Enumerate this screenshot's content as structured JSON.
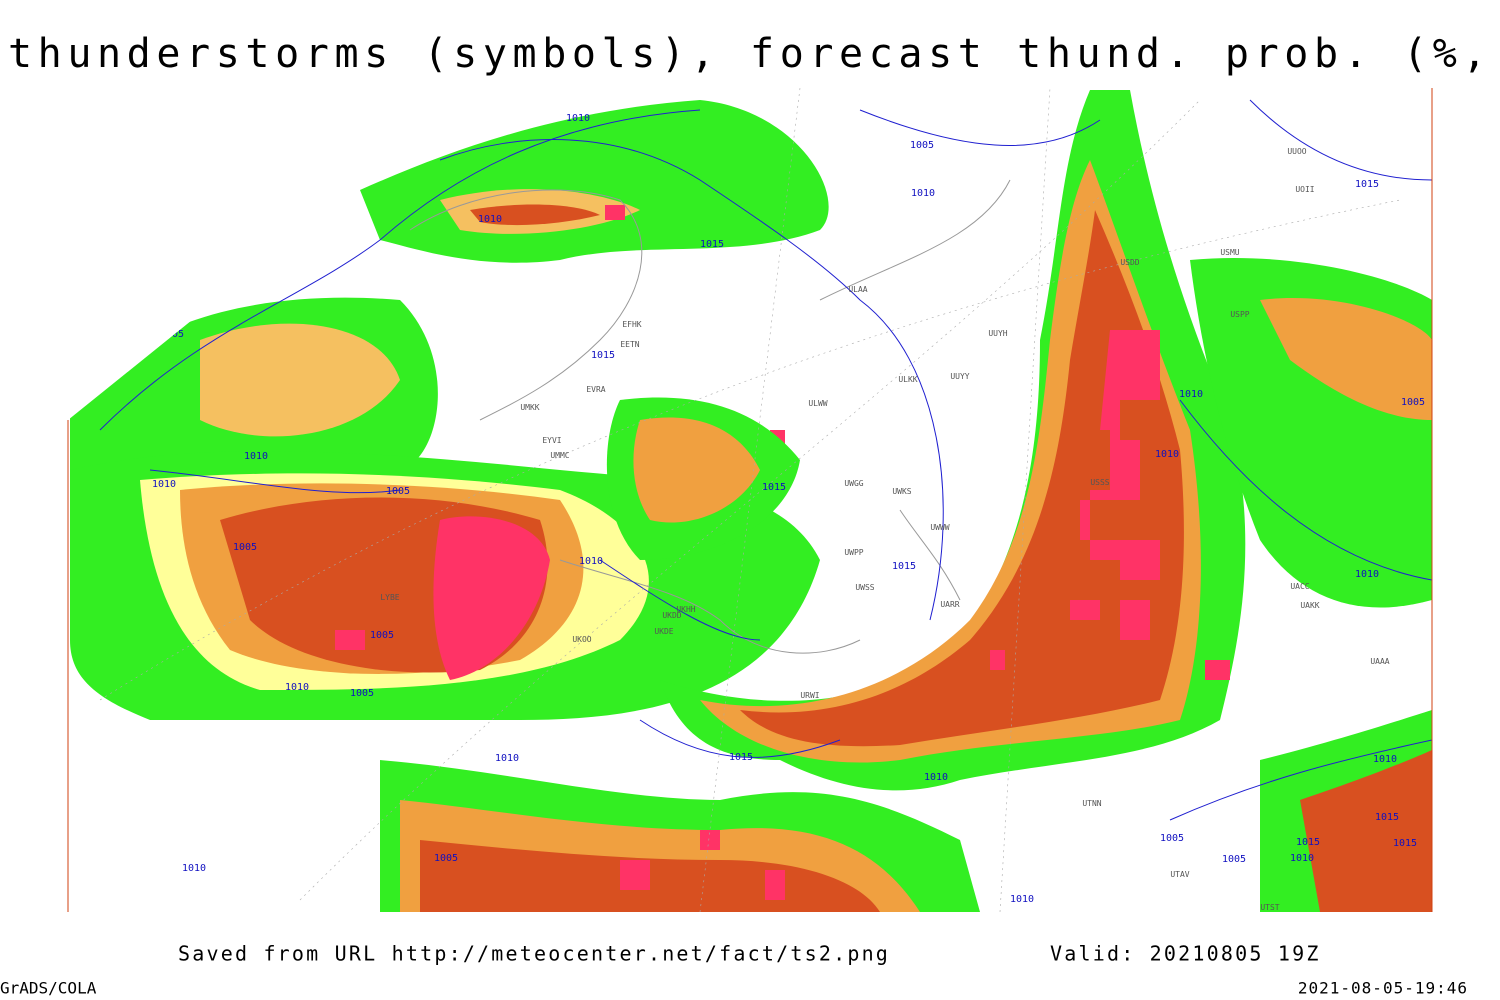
{
  "header": {
    "title": "Current thunderstorms (symbols), forecast thund. prob. (%, shaded)"
  },
  "footer": {
    "source": "Saved from URL http://meteocenter.net/fact/ts2.png",
    "valid": "Valid: 20210805 19Z",
    "software": "GrADS/COLA",
    "timestamp": "2021-08-05-19:46"
  },
  "isobar_labels": [
    1010,
    1005,
    1010,
    1015,
    1005,
    1015,
    1015,
    1010,
    1005,
    1010,
    1005,
    1005,
    1010,
    1005,
    1010,
    1015,
    1015,
    1010,
    1015,
    1010,
    1010,
    1010,
    1005,
    1005,
    1010,
    1015,
    1005,
    1010,
    1015,
    1010,
    1005,
    1010,
    1015,
    1010,
    1010
  ],
  "stations": [
    "ULAA",
    "UUYH",
    "ULKK",
    "UUYY",
    "ULWW",
    "UWGG",
    "UWKS",
    "UWPP",
    "UWSS",
    "UARR",
    "UACC",
    "UAKK",
    "UTNN",
    "UTAV",
    "UTST",
    "UKHH",
    "UKDD",
    "UKDE",
    "UKOO",
    "EVRA",
    "UMKK",
    "EYVI",
    "UMMC",
    "EETN",
    "EFHK",
    "LYBE",
    "UUOO",
    "UOII",
    "USMU",
    "USDD",
    "USPP",
    "USSS",
    "UWWW",
    "URWI",
    "UAAA"
  ]
}
